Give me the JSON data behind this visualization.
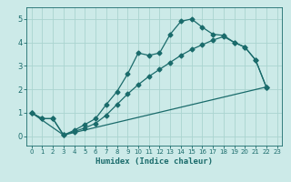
{
  "xlabel": "Humidex (Indice chaleur)",
  "bg_color": "#cceae8",
  "line_color": "#1a6b6b",
  "grid_color": "#aad4d0",
  "xlim": [
    -0.5,
    23.5
  ],
  "ylim": [
    -0.4,
    5.5
  ],
  "xticks": [
    0,
    1,
    2,
    3,
    4,
    5,
    6,
    7,
    8,
    9,
    10,
    11,
    12,
    13,
    14,
    15,
    16,
    17,
    18,
    19,
    20,
    21,
    22,
    23
  ],
  "yticks": [
    0,
    1,
    2,
    3,
    4,
    5
  ],
  "line1_x": [
    0,
    1,
    2,
    3,
    4,
    5,
    6,
    7,
    8,
    9,
    10,
    11,
    12,
    13,
    14,
    15,
    16,
    17,
    18,
    19,
    20,
    21,
    22
  ],
  "line1_y": [
    1.0,
    0.75,
    0.75,
    0.05,
    0.25,
    0.5,
    0.75,
    1.35,
    1.9,
    2.65,
    3.55,
    3.45,
    3.55,
    4.35,
    4.9,
    5.0,
    4.65,
    4.35,
    4.3,
    4.0,
    3.8,
    3.25,
    2.1
  ],
  "line2_x": [
    0,
    1,
    2,
    3,
    4,
    5,
    6,
    7,
    8,
    9,
    10,
    11,
    12,
    13,
    14,
    15,
    16,
    17,
    18,
    19,
    20,
    21,
    22
  ],
  "line2_y": [
    1.0,
    0.75,
    0.75,
    0.05,
    0.2,
    0.35,
    0.55,
    0.9,
    1.35,
    1.8,
    2.2,
    2.55,
    2.85,
    3.15,
    3.45,
    3.7,
    3.9,
    4.1,
    4.25,
    4.0,
    3.8,
    3.25,
    2.1
  ],
  "line3_x": [
    0,
    3,
    22
  ],
  "line3_y": [
    1.0,
    0.05,
    2.1
  ],
  "markersize": 2.5,
  "linewidth": 0.9
}
